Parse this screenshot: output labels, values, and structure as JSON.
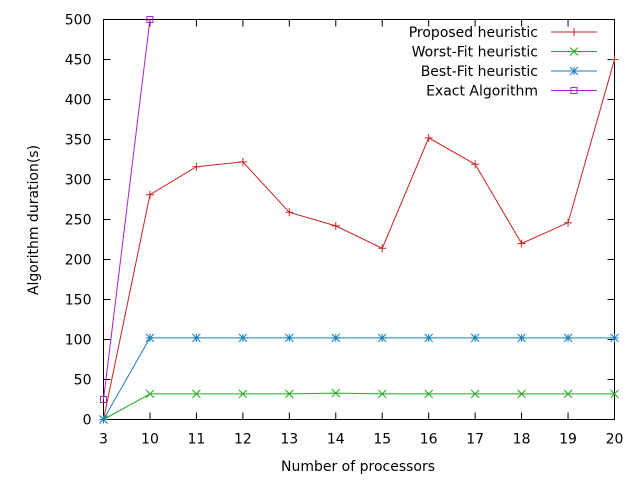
{
  "chart_data": {
    "type": "line",
    "title": "",
    "xlabel": "Number of processors",
    "ylabel": "Algorithm duration(s)",
    "categories": [
      "3",
      "10",
      "11",
      "12",
      "13",
      "14",
      "15",
      "16",
      "17",
      "18",
      "19",
      "20"
    ],
    "ylim": [
      0,
      500
    ],
    "yticks": [
      0,
      50,
      100,
      150,
      200,
      250,
      300,
      350,
      400,
      450,
      500
    ],
    "grid": false,
    "legend_position": "top-right",
    "series": [
      {
        "name": "Proposed heuristic",
        "color": "#cc2222",
        "marker": "plus",
        "values": [
          0,
          281,
          316,
          322,
          259,
          242,
          214,
          352,
          319,
          220,
          246,
          450
        ]
      },
      {
        "name": "Worst-Fit heuristic",
        "color": "#22aa22",
        "marker": "x",
        "values": [
          0,
          32,
          32,
          32,
          32,
          33,
          32,
          32,
          32,
          32,
          32,
          32
        ]
      },
      {
        "name": "Best-Fit heuristic",
        "color": "#1a7fbf",
        "marker": "star",
        "values": [
          0,
          102,
          102,
          102,
          102,
          102,
          102,
          102,
          102,
          102,
          102,
          102
        ]
      },
      {
        "name": "Exact Algorithm",
        "color": "#aa22cc",
        "marker": "square",
        "values": [
          25,
          500,
          null,
          null,
          null,
          null,
          null,
          null,
          null,
          null,
          null,
          null
        ]
      }
    ]
  }
}
